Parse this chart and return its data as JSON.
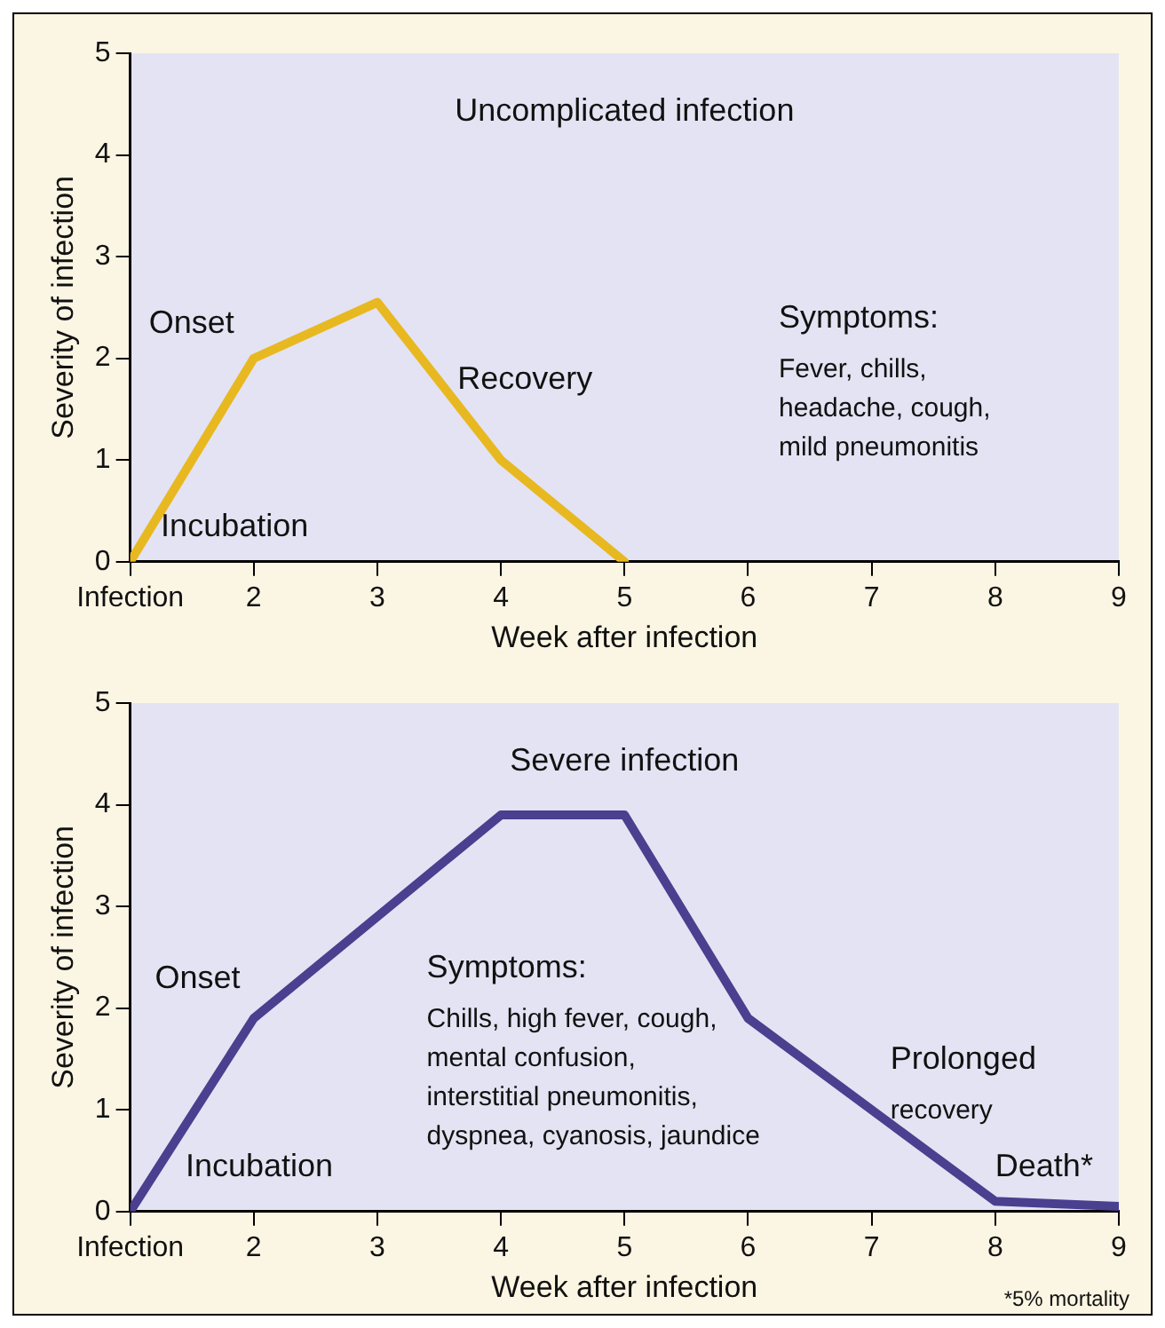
{
  "chart_data": [
    {
      "type": "line",
      "title": "Uncomplicated infection",
      "xlabel": "Week after infection",
      "ylabel": "Severity of infection",
      "x": [
        1,
        2,
        3,
        4,
        5
      ],
      "series": [
        {
          "color": "#e8b820",
          "values": [
            0,
            2,
            2.55,
            1,
            0
          ]
        }
      ],
      "xlim": [
        1,
        9
      ],
      "xticks": [
        {
          "value": 1,
          "label": "Infection"
        },
        2,
        3,
        4,
        5,
        6,
        7,
        8,
        9
      ],
      "ylim": [
        0,
        5
      ],
      "yticks": [
        0,
        1,
        2,
        3,
        4,
        5
      ],
      "grid": false,
      "legend": false,
      "marker": "none",
      "line_style": "solid",
      "annotations": [
        "Onset",
        "Incubation",
        "Recovery",
        "Symptoms:\nFever, chills,\nheadache, cough,\nmild pneumonitis"
      ]
    },
    {
      "type": "line",
      "title": "Severe infection",
      "xlabel": "Week after infection",
      "ylabel": "Severity of infection",
      "x": [
        1,
        2,
        4,
        5,
        6,
        8,
        9
      ],
      "series": [
        {
          "color": "#4b3f8f",
          "values": [
            0,
            1.9,
            3.9,
            3.9,
            1.9,
            0.1,
            0.05
          ]
        }
      ],
      "xlim": [
        1,
        9
      ],
      "xticks": [
        {
          "value": 1,
          "label": "Infection"
        },
        2,
        3,
        4,
        5,
        6,
        7,
        8,
        9
      ],
      "ylim": [
        0,
        5
      ],
      "yticks": [
        0,
        1,
        2,
        3,
        4,
        5
      ],
      "grid": false,
      "legend": false,
      "marker": "none",
      "line_style": "solid",
      "annotations": [
        "Onset",
        "Incubation",
        "Symptoms:\nChills, high fever, cough,\nmental confusion,\ninterstitial pneumonitis,\ndyspnea, cyanosis, jaundice",
        "Prolonged\nrecovery",
        "Death*",
        "*5% mortality"
      ]
    }
  ]
}
